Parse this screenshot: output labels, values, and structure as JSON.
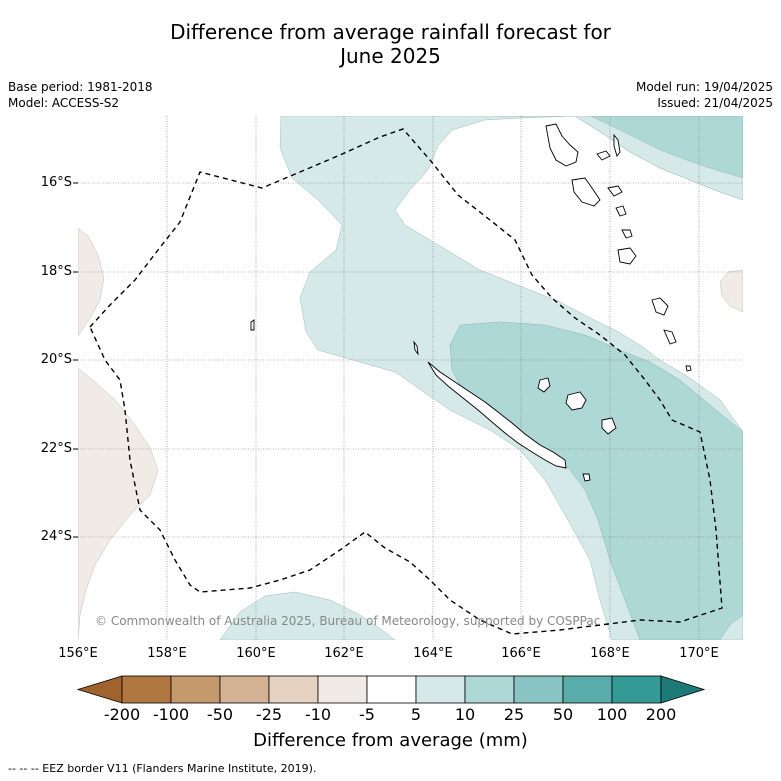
{
  "title": {
    "line1": "Difference from average rainfall forecast for",
    "line2": "June 2025"
  },
  "meta_left": {
    "base_period": "Base period: 1981-2018",
    "model": "Model: ACCESS-S2"
  },
  "meta_right": {
    "model_run": "Model run: 19/04/2025",
    "issued": "Issued: 21/04/2025"
  },
  "map": {
    "latitude_labels": [
      "16°S",
      "18°S",
      "20°S",
      "22°S",
      "24°S"
    ],
    "longitude_labels": [
      "156°E",
      "158°E",
      "160°E",
      "162°E",
      "164°E",
      "166°E",
      "168°E",
      "170°E"
    ],
    "lon_range": [
      156,
      171
    ],
    "lat_range": [
      -26.3,
      -14.6
    ],
    "copyright": "© Commonwealth of Australia 2025, Bureau of Meteorology, supported by COSPPac"
  },
  "colorbar": {
    "ticks": [
      "-200",
      "-100",
      "-50",
      "-25",
      "-10",
      "-5",
      "5",
      "10",
      "25",
      "50",
      "100",
      "200"
    ],
    "colors": [
      "#a0632e",
      "#b07740",
      "#c49a6c",
      "#d4b294",
      "#e6d2c0",
      "#f0ebe6",
      "#ffffff",
      "#d4e9e8",
      "#aed8d6",
      "#87c4c3",
      "#58adab",
      "#349a96",
      "#1d7a76"
    ],
    "label": "Difference from average (mm)"
  },
  "footnote": "-- -- -- EEZ border V11 (Flanders Marine Institute, 2019)."
}
